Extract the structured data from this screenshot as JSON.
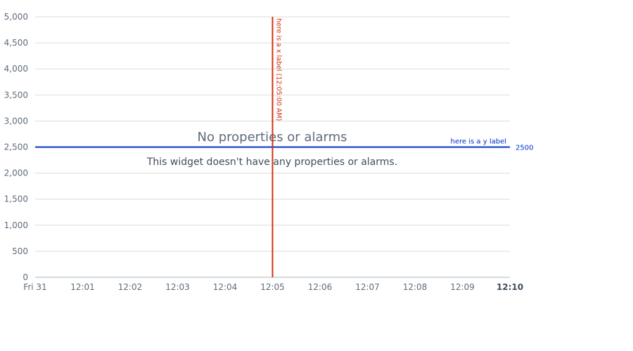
{
  "chart_data": {
    "type": "line",
    "title": "",
    "xlabel": "",
    "ylabel": "",
    "ylim": [
      0,
      5000
    ],
    "y_ticks": [
      0,
      500,
      1000,
      1500,
      2000,
      2500,
      3000,
      3500,
      4000,
      4500,
      5000
    ],
    "y_tick_labels": [
      "0",
      "500",
      "1,000",
      "1,500",
      "2,000",
      "2,500",
      "3,000",
      "3,500",
      "4,000",
      "4,500",
      "5,000"
    ],
    "x_tick_labels": [
      "Fri 31",
      "12:01",
      "12:02",
      "12:03",
      "12:04",
      "12:05",
      "12:06",
      "12:07",
      "12:08",
      "12:09",
      "12:10"
    ],
    "x_tick_bold_last": true,
    "grid": "horizontal",
    "series": [],
    "annotations": {
      "vertical": [
        {
          "x_index": 5,
          "label": "here is a x label (12:05:00 AM)",
          "color": "#d13212"
        }
      ],
      "horizontal": [
        {
          "y": 2500,
          "label": "here is a y label",
          "value_label": "2500",
          "color": "#0033cc"
        }
      ]
    }
  },
  "empty_state": {
    "title": "No properties or alarms",
    "description": "This widget doesn't have any properties or alarms."
  },
  "colors": {
    "grid": "#dadada",
    "tick_text": "#5f6b7a",
    "axis": "#aab7b8"
  }
}
